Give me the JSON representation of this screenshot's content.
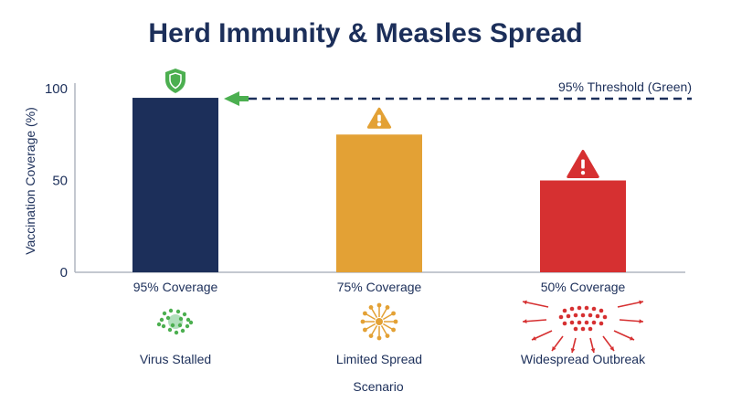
{
  "chart_data": {
    "type": "bar",
    "title": "Herd Immunity & Measles Spread",
    "xlabel": "Scenario",
    "ylabel": "Vaccination Coverage (%)",
    "ylim": [
      0,
      100
    ],
    "yticks": [
      0,
      50,
      100
    ],
    "categories": [
      "95% Coverage",
      "75% Coverage",
      "50% Coverage"
    ],
    "values": [
      95,
      75,
      50
    ],
    "outcomes": [
      "Virus Stalled",
      "Limited Spread",
      "Widespread Outbreak"
    ],
    "status_icons": [
      "shield-icon",
      "warning-icon",
      "warning-icon"
    ],
    "outcome_icons": [
      "clustered-particles-icon",
      "radiating-particles-icon",
      "outbreak-arrows-icon"
    ],
    "bar_colors": [
      "#1c2f5a",
      "#e3a135",
      "#d63031"
    ],
    "threshold": {
      "value": 95,
      "label": "95% Threshold (Green)",
      "color": "#1c2f5a",
      "style": "dashed",
      "arrow_color": "#4caf50"
    },
    "grid": false,
    "legend": "none"
  },
  "colors": {
    "text_dark": "#1c2f5a",
    "axis": "#b0b6c0",
    "green": "#4caf50",
    "orange": "#e3a135",
    "red": "#d63031"
  }
}
